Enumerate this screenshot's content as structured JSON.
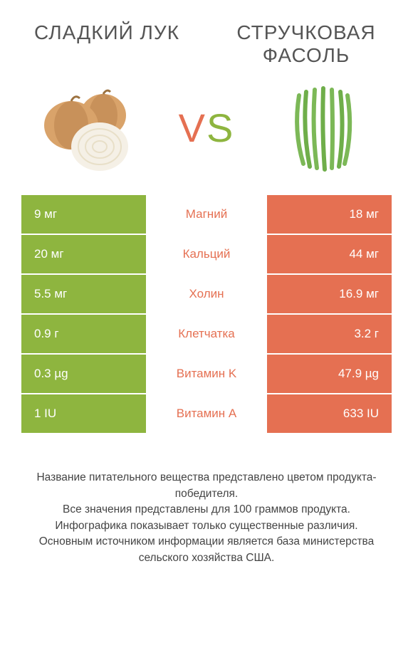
{
  "header": {
    "left_title": "Сладкий лук",
    "right_title": "Стручковая фасоль"
  },
  "vs": {
    "v_color": "#e57052",
    "s_color": "#8eb53f",
    "text_v": "V",
    "text_s": "S"
  },
  "colors": {
    "left_bg": "#8eb53f",
    "right_bg": "#e57052",
    "mid_text_winner_left": "#8eb53f",
    "mid_text_winner_right": "#e57052",
    "row_border": "#ffffff"
  },
  "rows": [
    {
      "label": "Магний",
      "left": "9 мг",
      "right": "18 мг",
      "winner": "right"
    },
    {
      "label": "Кальций",
      "left": "20 мг",
      "right": "44 мг",
      "winner": "right"
    },
    {
      "label": "Холин",
      "left": "5.5 мг",
      "right": "16.9 мг",
      "winner": "right"
    },
    {
      "label": "Клетчатка",
      "left": "0.9 г",
      "right": "3.2 г",
      "winner": "right"
    },
    {
      "label": "Витамин K",
      "left": "0.3 µg",
      "right": "47.9 µg",
      "winner": "right"
    },
    {
      "label": "Витамин A",
      "left": "1 IU",
      "right": "633 IU",
      "winner": "right"
    }
  ],
  "footer": {
    "line1": "Название питательного вещества представлено цветом продукта-победителя.",
    "line2": "Все значения представлены для 100 граммов продукта.",
    "line3": "Инфографика показывает только существенные различия.",
    "line4": "Основным источником информации является база министерства сельского хозяйства США."
  },
  "icons": {
    "onion_colors": {
      "skin": "#d9a36a",
      "skin_dark": "#b8824c",
      "flesh": "#f5f0e6",
      "ring": "#e8dfc8"
    },
    "beans_color": "#6fae4a"
  }
}
